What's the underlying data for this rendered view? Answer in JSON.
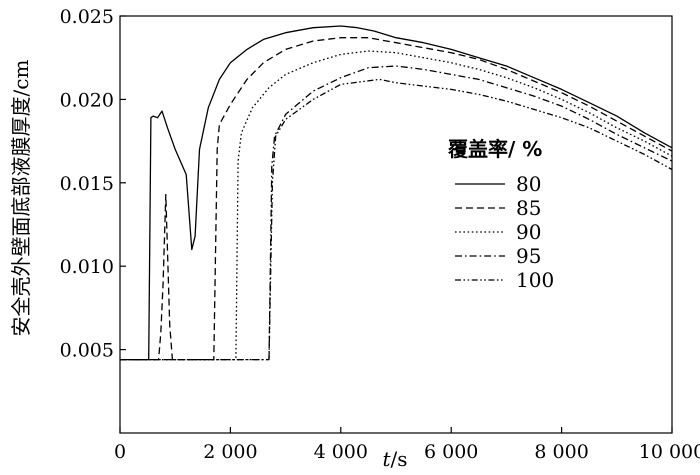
{
  "chart_data": {
    "type": "line",
    "ylabel": "安全壳外壁面底部液膜厚度/cm",
    "xlabel_italic": "t",
    "xlabel_unit": "/s",
    "xlim": [
      0,
      10000
    ],
    "ylim": [
      0,
      0.025
    ],
    "xticks": [
      0,
      2000,
      4000,
      6000,
      8000,
      10000
    ],
    "xtick_labels": [
      "0",
      "2 000",
      "4 000",
      "6 000",
      "8 000",
      "10 000"
    ],
    "yticks": [
      0.005,
      0.01,
      0.015,
      0.02,
      0.025
    ],
    "ytick_labels": [
      "0.005",
      "0.010",
      "0.015",
      "0.020",
      "0.025"
    ],
    "grid": false,
    "legend_title": "覆盖率/ %",
    "legend_position": "right",
    "series": [
      {
        "name": "80",
        "dash": "solid",
        "x": [
          0,
          520,
          560,
          600,
          680,
          760,
          860,
          1000,
          1200,
          1300,
          1360,
          1440,
          1600,
          1800,
          2000,
          2300,
          2600,
          3000,
          3500,
          4000,
          4300,
          4600,
          5000,
          5500,
          6000,
          6500,
          7000,
          7500,
          8000,
          8500,
          9000,
          9500,
          10000
        ],
        "y": [
          0.0044,
          0.0044,
          0.0189,
          0.019,
          0.0189,
          0.0193,
          0.0183,
          0.017,
          0.0155,
          0.011,
          0.0118,
          0.017,
          0.0195,
          0.0212,
          0.0222,
          0.023,
          0.0236,
          0.024,
          0.0243,
          0.0244,
          0.0243,
          0.0241,
          0.0237,
          0.0234,
          0.023,
          0.0225,
          0.022,
          0.0213,
          0.0206,
          0.0198,
          0.019,
          0.018,
          0.0171
        ]
      },
      {
        "name": "85",
        "dash": "long-dash",
        "x": [
          0,
          700,
          740,
          780,
          830,
          900,
          950,
          1700,
          1760,
          1800,
          2000,
          2300,
          2600,
          3000,
          3500,
          4000,
          4500,
          5000,
          5500,
          6000,
          6500,
          7000,
          7500,
          8000,
          8500,
          9000,
          9500,
          10000
        ],
        "y": [
          0.0044,
          0.0044,
          0.006,
          0.009,
          0.0143,
          0.0065,
          0.0044,
          0.0044,
          0.017,
          0.0185,
          0.0197,
          0.0212,
          0.0222,
          0.023,
          0.0235,
          0.0237,
          0.0237,
          0.0234,
          0.0231,
          0.0228,
          0.0224,
          0.0218,
          0.0211,
          0.0204,
          0.0196,
          0.0187,
          0.0178,
          0.0169
        ]
      },
      {
        "name": "90",
        "dash": "dot",
        "x": [
          0,
          2100,
          2140,
          2200,
          2400,
          2700,
          3000,
          3500,
          4000,
          4500,
          5000,
          5500,
          6000,
          6500,
          7000,
          7500,
          8000,
          8500,
          9000,
          9500,
          10000
        ],
        "y": [
          0.0044,
          0.0044,
          0.0163,
          0.018,
          0.0195,
          0.0207,
          0.0215,
          0.0222,
          0.0227,
          0.0229,
          0.0228,
          0.0225,
          0.0222,
          0.0218,
          0.0213,
          0.0207,
          0.02,
          0.0192,
          0.0183,
          0.0175,
          0.0166
        ]
      },
      {
        "name": "95",
        "dash": "dash-dot",
        "x": [
          0,
          2700,
          2750,
          2800,
          3000,
          3500,
          4000,
          4500,
          5000,
          5500,
          6000,
          6500,
          7000,
          7500,
          8000,
          8500,
          9000,
          9500,
          10000
        ],
        "y": [
          0.0044,
          0.0044,
          0.016,
          0.0178,
          0.0191,
          0.0205,
          0.0213,
          0.0219,
          0.022,
          0.0218,
          0.0215,
          0.0212,
          0.0207,
          0.0202,
          0.0196,
          0.0188,
          0.0179,
          0.0171,
          0.0163
        ]
      },
      {
        "name": "100",
        "dash": "dash-dot-dot",
        "x": [
          0,
          2700,
          2760,
          2820,
          3000,
          3500,
          4000,
          4700,
          5000,
          5500,
          6000,
          6500,
          7000,
          7500,
          8000,
          8500,
          9000,
          9500,
          10000
        ],
        "y": [
          0.0044,
          0.0044,
          0.015,
          0.0178,
          0.0188,
          0.02,
          0.0209,
          0.0212,
          0.021,
          0.0208,
          0.0206,
          0.0203,
          0.0199,
          0.0194,
          0.0189,
          0.0183,
          0.0175,
          0.0167,
          0.0158
        ]
      }
    ]
  }
}
